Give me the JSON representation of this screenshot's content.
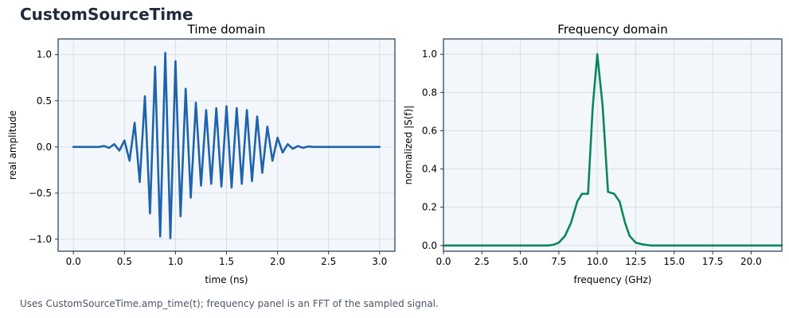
{
  "figure": {
    "title": "CustomSourceTime",
    "footer": "Uses CustomSourceTime.amp_time(t); frequency panel is an FFT of the sampled signal."
  },
  "colors": {
    "time_series": "#1f63ad",
    "freq_series": "#0a8757",
    "plot_bg": "#f3f7fb",
    "grid": "#d7dee6",
    "frame": "#4a5f73"
  },
  "chart_data": [
    {
      "type": "line",
      "title": "Time domain",
      "xlabel": "time (ns)",
      "ylabel": "real amplitude",
      "xlim": [
        -0.15,
        3.15
      ],
      "ylim": [
        -1.13,
        1.17
      ],
      "xticks": [
        0.0,
        0.5,
        1.0,
        1.5,
        2.0,
        2.5,
        3.0
      ],
      "xtick_labels": [
        "0.0",
        "0.5",
        "1.0",
        "1.5",
        "2.0",
        "2.5",
        "3.0"
      ],
      "yticks": [
        -1.0,
        -0.5,
        0.0,
        0.5,
        1.0
      ],
      "ytick_labels": [
        "−1.0",
        "−0.5",
        "0.0",
        "0.5",
        "1.0"
      ],
      "grid": true,
      "series": [
        {
          "x": [
            0.0,
            0.25,
            0.3,
            0.35,
            0.4,
            0.45,
            0.5,
            0.55,
            0.6,
            0.65,
            0.7,
            0.75,
            0.8,
            0.85,
            0.9,
            0.95,
            1.0,
            1.05,
            1.1,
            1.15,
            1.2,
            1.25,
            1.3,
            1.35,
            1.4,
            1.45,
            1.5,
            1.55,
            1.6,
            1.65,
            1.7,
            1.75,
            1.8,
            1.85,
            1.9,
            1.95,
            2.0,
            2.05,
            2.1,
            2.15,
            2.2,
            2.25,
            2.3,
            2.35,
            2.4,
            2.5,
            3.0
          ],
          "y": [
            0.0,
            0.0,
            0.01,
            -0.01,
            0.03,
            -0.04,
            0.07,
            -0.15,
            0.26,
            -0.38,
            0.55,
            -0.72,
            0.87,
            -0.97,
            1.02,
            -0.99,
            0.93,
            -0.75,
            0.63,
            -0.55,
            0.48,
            -0.42,
            0.4,
            -0.4,
            0.42,
            -0.43,
            0.44,
            -0.44,
            0.42,
            -0.4,
            0.4,
            -0.37,
            0.33,
            -0.28,
            0.22,
            -0.15,
            0.1,
            -0.06,
            0.03,
            -0.02,
            0.01,
            -0.01,
            0.005,
            0.0,
            0.0,
            0.0,
            0.0
          ]
        }
      ]
    },
    {
      "type": "line",
      "title": "Frequency domain",
      "xlabel": "frequency (GHz)",
      "ylabel": "normalized |S(f)|",
      "xlim": [
        0,
        22
      ],
      "ylim": [
        -0.03,
        1.08
      ],
      "xticks": [
        0.0,
        2.5,
        5.0,
        7.5,
        10.0,
        12.5,
        15.0,
        17.5,
        20.0
      ],
      "xtick_labels": [
        "0.0",
        "2.5",
        "5.0",
        "7.5",
        "10.0",
        "12.5",
        "15.0",
        "17.5",
        "20.0"
      ],
      "yticks": [
        0.0,
        0.2,
        0.4,
        0.6,
        0.8,
        1.0
      ],
      "ytick_labels": [
        "0.0",
        "0.2",
        "0.4",
        "0.6",
        "0.8",
        "1.0"
      ],
      "grid": true,
      "series": [
        {
          "x": [
            0,
            6.8,
            7.2,
            7.5,
            7.9,
            8.3,
            8.7,
            9.0,
            9.4,
            9.7,
            10.0,
            10.35,
            10.7,
            11.1,
            11.45,
            11.8,
            12.1,
            12.5,
            13.0,
            13.5,
            22
          ],
          "y": [
            0.0,
            0.0,
            0.005,
            0.015,
            0.05,
            0.12,
            0.23,
            0.27,
            0.27,
            0.72,
            1.0,
            0.73,
            0.28,
            0.27,
            0.23,
            0.12,
            0.05,
            0.015,
            0.005,
            0.0,
            0.0
          ]
        }
      ]
    }
  ]
}
